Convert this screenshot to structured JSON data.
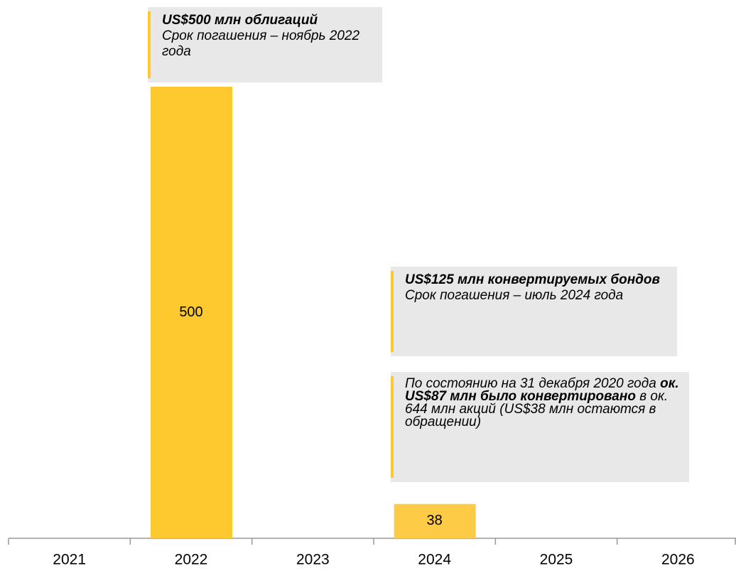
{
  "chart_data": {
    "type": "bar",
    "categories": [
      "2021",
      "2022",
      "2023",
      "2024",
      "2025",
      "2026"
    ],
    "values": [
      null,
      500,
      null,
      38,
      null,
      null
    ],
    "colors": [
      null,
      "#fdc92f",
      null,
      "#fdcb45",
      null,
      null
    ],
    "annotations": [
      {
        "category": 1,
        "segments": [
          {
            "text": "US$500 млн облигаций",
            "bold": true
          },
          {
            "text": "Срок погашения – ноябрь 2022 года",
            "bold": false
          }
        ]
      },
      {
        "category": 3,
        "segments": [
          {
            "text": "US$125 млн конвертируемых бондов",
            "bold": true
          },
          {
            "text": "Срок погашения – июль 2024 года",
            "bold": false
          }
        ]
      },
      {
        "category": 3,
        "segments": [
          {
            "text": "По состоянию на 31 декабря 2020 года ",
            "bold": false
          },
          {
            "text": "ок. US$87 млн было конвертировано",
            "bold": true
          },
          {
            "text": " в ок. 644 млн акций (US$38 млн остаются в обращении)",
            "bold": false
          }
        ]
      }
    ]
  }
}
